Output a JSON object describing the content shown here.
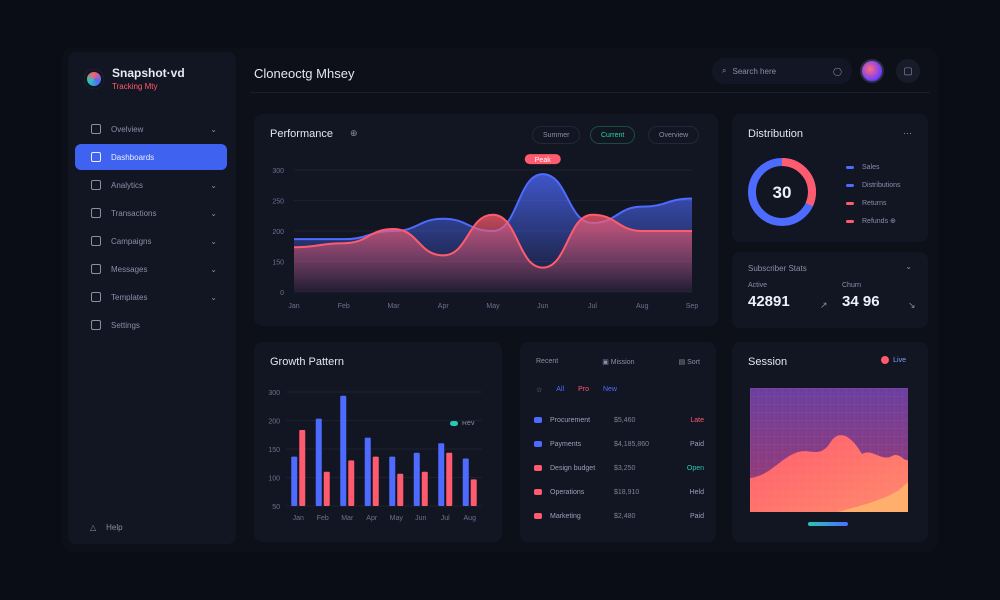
{
  "app": {
    "title": "Snapshot·vd",
    "subtitle": "Tracking Mty"
  },
  "page": {
    "title": "Cloneoctg Mhsey"
  },
  "search": {
    "placeholder": "Search here"
  },
  "sidebar": {
    "items": [
      {
        "label": "Ovelview",
        "icon": "grid-icon",
        "chevron": "⌄"
      },
      {
        "label": "Dashboards",
        "icon": "dashboard-icon",
        "chevron": ""
      },
      {
        "label": "Analytics",
        "icon": "chart-icon",
        "chevron": "⌄"
      },
      {
        "label": "Transactions",
        "icon": "list-icon",
        "chevron": "⌄"
      },
      {
        "label": "Campaigns",
        "icon": "calendar-icon",
        "chevron": "⌄"
      },
      {
        "label": "Messages",
        "icon": "message-icon",
        "chevron": "⌄"
      },
      {
        "label": "Templates",
        "icon": "folder-icon",
        "chevron": "⌄"
      },
      {
        "label": "Settings",
        "icon": "gear-icon",
        "chevron": ""
      }
    ],
    "footer_label": "Help"
  },
  "performance": {
    "title": "Performance",
    "info_icon": "⊕",
    "segments": [
      "Summer",
      "Current",
      "Overview"
    ],
    "peak_badge": "Peak"
  },
  "distribution": {
    "title": "Distribution",
    "menu": "⋯",
    "center_value": "30",
    "legend": [
      {
        "label": "Sales",
        "color": "#4e6bff"
      },
      {
        "label": "Distributions",
        "color": "#4e6bff"
      },
      {
        "label": "Returns",
        "color": "#ff5b6e"
      },
      {
        "label": "Refunds ⊕",
        "color": "#ff5b6e"
      }
    ]
  },
  "stats": {
    "title": "Subscriber Stats",
    "menu": "⌄",
    "items": [
      {
        "label": "Active",
        "value": "42891",
        "trend": "↗"
      },
      {
        "label": "Churn",
        "value": "34 96",
        "trend": "↘"
      }
    ]
  },
  "bars": {
    "title": "Growth Pattern",
    "legend_label": "Rev"
  },
  "table": {
    "header_left": "Recent",
    "header_mid": "Mission",
    "header_right": "Sort",
    "filters": [
      {
        "label": "☆",
        "color": "#8a8fa8"
      },
      {
        "label": "All",
        "color": "#4e6bff"
      },
      {
        "label": "Pro",
        "color": "#ff5b6e"
      },
      {
        "label": "New",
        "color": "#4e6bff"
      }
    ],
    "rows": [
      {
        "name": "Procurement",
        "value": "$5,460",
        "status": "Late",
        "mark": "#4e6bff",
        "status_color": "#ff5b6e"
      },
      {
        "name": "Payments",
        "value": "$4,185,860",
        "status": "Paid",
        "mark": "#4e6bff",
        "status_color": "#9aa0b8"
      },
      {
        "name": "Design budget",
        "value": "$3,250",
        "status": "Open",
        "mark": "#ff5b6e",
        "status_color": "#29c7b5"
      },
      {
        "name": "Operations",
        "value": "$18,910",
        "status": "Held",
        "mark": "#ff5b6e",
        "status_color": "#9aa0b8"
      },
      {
        "name": "Marketing",
        "value": "$2,480",
        "status": "Paid",
        "mark": "#ff5b6e",
        "status_color": "#9aa0b8"
      }
    ]
  },
  "heatmap": {
    "title": "Session",
    "badge": "Live"
  },
  "colors": {
    "accent_blue": "#4e6bff",
    "accent_red": "#ff5b6e",
    "accent_green": "#29c7b5",
    "card_bg": "#121522"
  },
  "chart_data": [
    {
      "type": "area",
      "title": "Performance",
      "x": [
        "Jan",
        "Feb",
        "Mar",
        "Apr",
        "May",
        "Jun",
        "Jul",
        "Aug",
        "Sep"
      ],
      "yticks": [
        "300",
        "250",
        "200",
        "150",
        "0"
      ],
      "ylim": [
        0,
        300
      ],
      "series": [
        {
          "name": "Blue",
          "color": "#4e6bff",
          "values": [
            130,
            130,
            150,
            180,
            150,
            290,
            170,
            210,
            230
          ]
        },
        {
          "name": "Red",
          "color": "#ff5b6e",
          "values": [
            110,
            120,
            155,
            90,
            190,
            60,
            190,
            150,
            150
          ]
        }
      ]
    },
    {
      "type": "bar",
      "title": "Growth Pattern",
      "categories": [
        "Jan",
        "Feb",
        "Mar",
        "Apr",
        "May",
        "Jun",
        "Jul",
        "Aug"
      ],
      "yticks": [
        "300",
        "200",
        "150",
        "100",
        "50"
      ],
      "ylim": [
        0,
        300
      ],
      "series": [
        {
          "name": "Blue",
          "color": "#4e6bff",
          "values": [
            130,
            230,
            290,
            180,
            130,
            140,
            165,
            125
          ]
        },
        {
          "name": "Red",
          "color": "#ff5b6e",
          "values": [
            200,
            90,
            120,
            130,
            85,
            90,
            140,
            70
          ]
        }
      ]
    }
  ]
}
